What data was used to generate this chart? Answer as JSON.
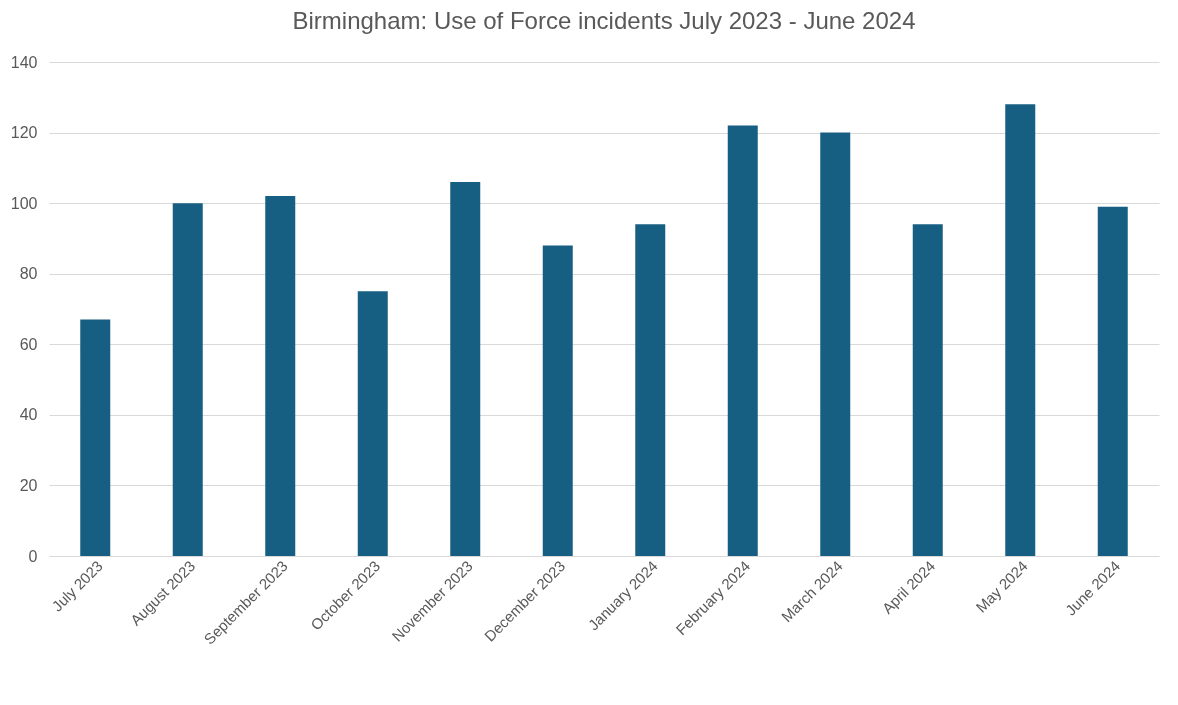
{
  "chart_data": {
    "type": "bar",
    "title": "Birmingham: Use of Force incidents July 2023 - June 2024",
    "categories": [
      "July 2023",
      "August 2023",
      "September 2023",
      "October 2023",
      "November 2023",
      "December 2023",
      "January 2024",
      "February 2024",
      "March 2024",
      "April 2024",
      "May 2024",
      "June 2024"
    ],
    "values": [
      67,
      100,
      102,
      75,
      106,
      88,
      94,
      122,
      120,
      94,
      128,
      99
    ],
    "color": "#175f82",
    "ylim": [
      0,
      140
    ],
    "yticks": [
      0,
      20,
      40,
      60,
      80,
      100,
      120,
      140
    ],
    "grid": "y"
  }
}
